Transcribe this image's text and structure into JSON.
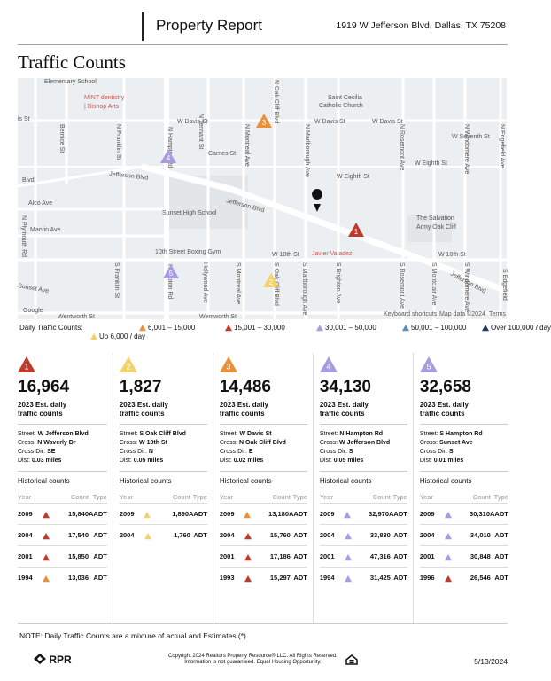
{
  "header": {
    "title": "Property Report",
    "address": "1919 W Jefferson Blvd, Dallas, TX 75208"
  },
  "section_title": "Traffic Counts",
  "map": {
    "labels": [
      "Elementary School",
      "MINT dentistry",
      "| Bishop Arts",
      "Saint Cecilia",
      "Catholic Church",
      "W Davis St",
      "W Davis St",
      "W Davis St",
      "is St",
      "W Seventh St",
      "Carnes St",
      "W Eighth St",
      "W Eighth St",
      "Jefferson Blvd",
      "Jefferson Blvd",
      "Blvd",
      "Alco Ave",
      "Sunset High School",
      "The Salvation",
      "Army Oak Cliff",
      "Marvin Ave",
      "10th Street Boxing Gym",
      "Javier Valadez",
      "W 10th St",
      "W 10th St",
      "Jefferson Blvd",
      "Sunset Ave",
      "Wentworth St",
      "Wentworth St",
      "Keyboard shortcuts",
      "Map data ©2024",
      "Terms",
      "Google",
      "N Franklin St",
      "N Montreal Ave",
      "N Oak Cliff Blvd",
      "N Marlborough Ave",
      "N Rosemont Ave",
      "N Windomere Ave",
      "N Edgefield Ave",
      "S Franklin St",
      "Hollywood Ave",
      "S Montreal Ave",
      "S Oak Cliff Blvd",
      "S Marlborough Ave",
      "S Brighton Ave",
      "S Rosemont Ave",
      "S Montclair Ave",
      "S Windomere Ave",
      "S Edgefield",
      "N Plymouth Rd",
      "Bernice St",
      "N Tennant St",
      "N Hampton Rd",
      "Hampton Rd"
    ],
    "markers": [
      {
        "label": "1",
        "color": "#c0392b"
      },
      {
        "label": "2",
        "color": "#f2d36b"
      },
      {
        "label": "3",
        "color": "#e8913a"
      },
      {
        "label": "4",
        "color": "#a99be0"
      },
      {
        "label": "5",
        "color": "#a99be0"
      }
    ]
  },
  "legend": {
    "title": "Daily Traffic Counts:",
    "items": [
      {
        "label": "6,001 – 15,000",
        "color": "#e8913a"
      },
      {
        "label": "15,001 – 30,000",
        "color": "#c0392b"
      },
      {
        "label": "30,001 – 50,000",
        "color": "#a99be0"
      },
      {
        "label": "50,001 – 100,000",
        "color": "#5b8db8"
      },
      {
        "label": "Over 100,000 / day",
        "color": "#1f3a5f"
      },
      {
        "label": "Up 6,000 / day",
        "color": "#f2d36b"
      }
    ]
  },
  "cards": [
    {
      "number": "1",
      "color": "#c0392b",
      "count": "16,964",
      "est_label": "2023 Est. daily traffic counts",
      "details": [
        {
          "label": "Street:",
          "value": "W Jefferson Blvd"
        },
        {
          "label": "Cross:",
          "value": "N Waverly Dr"
        },
        {
          "label": "Cross Dir:",
          "value": "SE"
        },
        {
          "label": "Dist:",
          "value": "0.03 miles"
        }
      ],
      "historical_title": "Historical counts",
      "headers": [
        "Year",
        "Count",
        "Type"
      ],
      "rows": [
        {
          "year": "2009",
          "count": "15,840",
          "type": "AADT",
          "color": "#c0392b"
        },
        {
          "year": "2004",
          "count": "17,540",
          "type": "ADT",
          "color": "#c0392b"
        },
        {
          "year": "2001",
          "count": "15,850",
          "type": "ADT",
          "color": "#c0392b"
        },
        {
          "year": "1994",
          "count": "13,036",
          "type": "ADT",
          "color": "#e8913a"
        }
      ]
    },
    {
      "number": "2",
      "color": "#f2d36b",
      "count": "1,827",
      "est_label": "2023 Est. daily traffic counts",
      "details": [
        {
          "label": "Street:",
          "value": "S Oak Cliff Blvd"
        },
        {
          "label": "Cross:",
          "value": "W 10th St"
        },
        {
          "label": "Cross Dir:",
          "value": "N"
        },
        {
          "label": "Dist:",
          "value": "0.05 miles"
        }
      ],
      "historical_title": "Historical counts",
      "headers": [
        "Year",
        "Count",
        "Type"
      ],
      "rows": [
        {
          "year": "2009",
          "count": "1,890",
          "type": "AADT",
          "color": "#f2d36b"
        },
        {
          "year": "2004",
          "count": "1,760",
          "type": "ADT",
          "color": "#f2d36b"
        }
      ]
    },
    {
      "number": "3",
      "color": "#e8913a",
      "count": "14,486",
      "est_label": "2023 Est. daily traffic counts",
      "details": [
        {
          "label": "Street:",
          "value": "W Davis St"
        },
        {
          "label": "Cross:",
          "value": "N Oak Cliff Blvd"
        },
        {
          "label": "Cross Dir:",
          "value": "E"
        },
        {
          "label": "Dist:",
          "value": "0.02 miles"
        }
      ],
      "historical_title": "Historical counts",
      "headers": [
        "Year",
        "Count",
        "Type"
      ],
      "rows": [
        {
          "year": "2009",
          "count": "13,180",
          "type": "AADT",
          "color": "#e8913a"
        },
        {
          "year": "2004",
          "count": "15,760",
          "type": "ADT",
          "color": "#c0392b"
        },
        {
          "year": "2001",
          "count": "17,186",
          "type": "ADT",
          "color": "#c0392b"
        },
        {
          "year": "1993",
          "count": "15,297",
          "type": "ADT",
          "color": "#c0392b"
        }
      ]
    },
    {
      "number": "4",
      "color": "#a99be0",
      "count": "34,130",
      "est_label": "2023 Est. daily traffic counts",
      "details": [
        {
          "label": "Street:",
          "value": "N Hampton Rd"
        },
        {
          "label": "Cross:",
          "value": "W Jefferson Blvd"
        },
        {
          "label": "Cross Dir:",
          "value": "S"
        },
        {
          "label": "Dist:",
          "value": "0.05 miles"
        }
      ],
      "historical_title": "Historical counts",
      "headers": [
        "Year",
        "Count",
        "Type"
      ],
      "rows": [
        {
          "year": "2009",
          "count": "32,970",
          "type": "AADT",
          "color": "#a99be0"
        },
        {
          "year": "2004",
          "count": "33,830",
          "type": "ADT",
          "color": "#a99be0"
        },
        {
          "year": "2001",
          "count": "47,316",
          "type": "ADT",
          "color": "#a99be0"
        },
        {
          "year": "1994",
          "count": "31,425",
          "type": "ADT",
          "color": "#a99be0"
        }
      ]
    },
    {
      "number": "5",
      "color": "#a99be0",
      "count": "32,658",
      "est_label": "2023 Est. daily traffic counts",
      "details": [
        {
          "label": "Street:",
          "value": "S Hampton Rd"
        },
        {
          "label": "Cross:",
          "value": "Sunset Ave"
        },
        {
          "label": "Cross Dir:",
          "value": "S"
        },
        {
          "label": "Dist:",
          "value": "0.01 miles"
        }
      ],
      "historical_title": "Historical counts",
      "headers": [
        "Year",
        "Count",
        "Type"
      ],
      "rows": [
        {
          "year": "2009",
          "count": "30,310",
          "type": "AADT",
          "color": "#a99be0"
        },
        {
          "year": "2004",
          "count": "34,010",
          "type": "ADT",
          "color": "#a99be0"
        },
        {
          "year": "2001",
          "count": "30,848",
          "type": "ADT",
          "color": "#a99be0"
        },
        {
          "year": "1996",
          "count": "26,546",
          "type": "ADT",
          "color": "#c0392b"
        }
      ]
    }
  ],
  "note": "NOTE: Daily Traffic Counts are a mixture of actual and Estimates (*)",
  "footer": {
    "brand": "RPR",
    "copyright": "Copyright 2024 Realtors Property Resource® LLC. All Rights Reserved.",
    "disclaimer": "Information is not guaranteed. Equal Housing Opportunity.",
    "date": "5/13/2024"
  }
}
